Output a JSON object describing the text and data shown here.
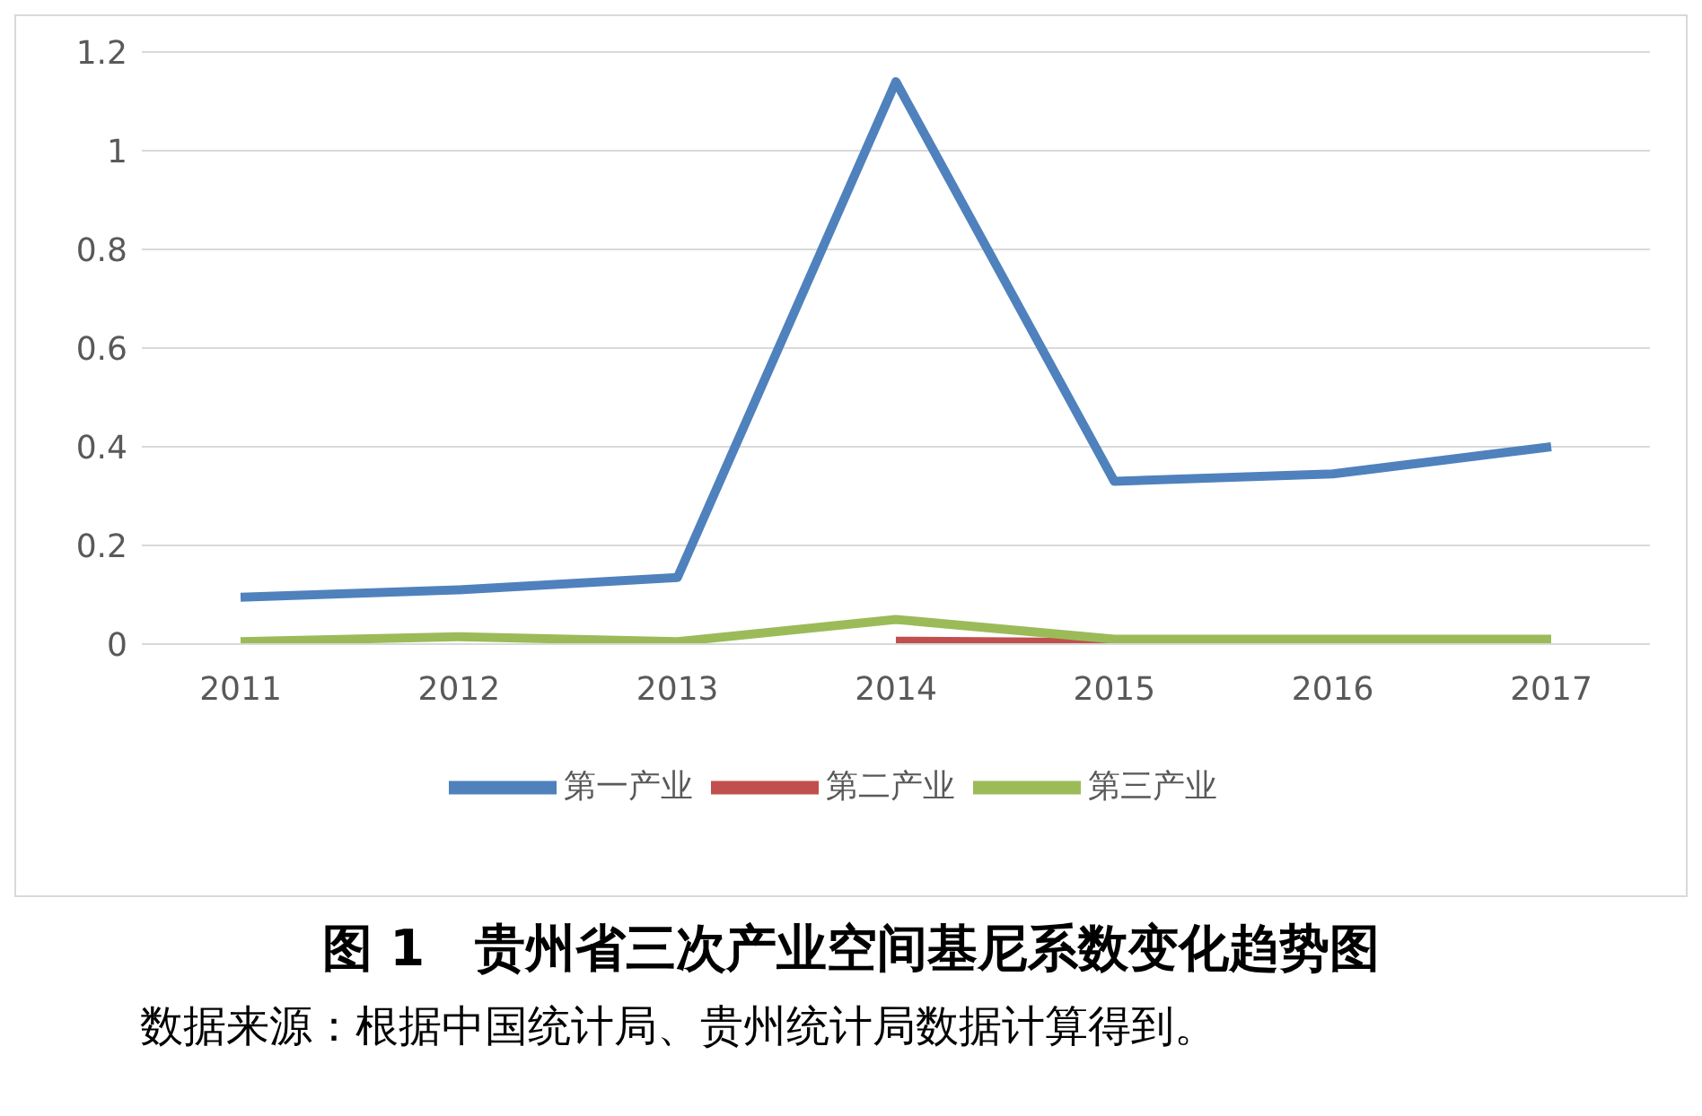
{
  "chart_data": {
    "type": "line",
    "title": "图 1　贵州省三次产业空间基尼系数变化趋势图",
    "annotations": [
      "数据来源：根据中国统计局、贵州统计局数据计算得到。"
    ],
    "categories": [
      "2011",
      "2012",
      "2013",
      "2014",
      "2015",
      "2016",
      "2017"
    ],
    "series": [
      {
        "name": "第一产业",
        "color": "#4f81bd",
        "values": [
          0.095,
          0.11,
          0.135,
          1.14,
          0.33,
          0.345,
          0.4
        ]
      },
      {
        "name": "第二产业",
        "color": "#c0504d",
        "values": [
          null,
          null,
          null,
          0.006,
          0.003,
          null,
          null
        ]
      },
      {
        "name": "第三产业",
        "color": "#9bbb59",
        "values": [
          0.005,
          0.015,
          0.005,
          0.05,
          0.01,
          0.01,
          0.01
        ]
      }
    ],
    "ylim": [
      0,
      1.2
    ],
    "yticks": [
      0,
      0.2,
      0.4,
      0.6,
      0.8,
      1,
      1.2
    ],
    "grid": "y",
    "legend": "bottom",
    "marker": "none",
    "line_style": "solid"
  }
}
